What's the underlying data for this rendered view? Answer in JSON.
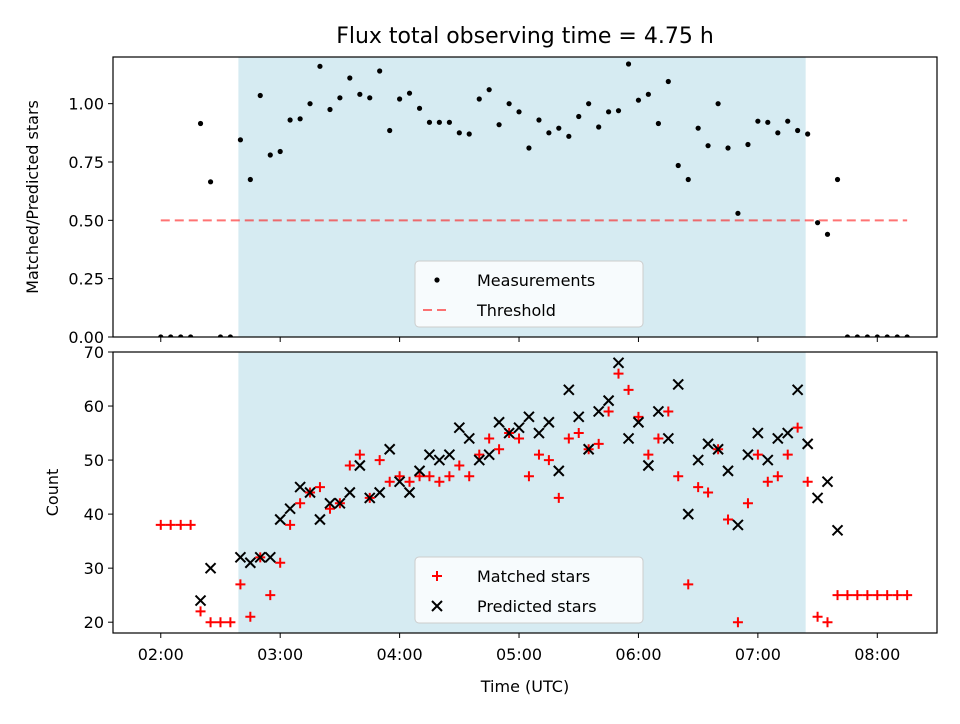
{
  "title": "Flux total observing time = 4.75 h",
  "colors": {
    "shade": "#add8e6",
    "measurement": "#000000",
    "threshold": "#ff0000",
    "matched": "#ff0000",
    "predicted": "#000000"
  },
  "chart_data": [
    {
      "type": "scatter",
      "panel": "top",
      "xlabel": "",
      "ylabel": "Matched/Predicted stars",
      "xlim": [
        1.6,
        8.5
      ],
      "ylim": [
        0,
        1.2
      ],
      "yticks": [
        0.0,
        0.25,
        0.5,
        0.75,
        1.0
      ],
      "ytick_labels": [
        "0.00",
        "0.25",
        "0.50",
        "0.75",
        "1.00"
      ],
      "shaded_region": [
        2.65,
        7.4
      ],
      "threshold": {
        "name": "Threshold",
        "y": 0.5,
        "x": [
          2.0,
          8.25
        ]
      },
      "legend": {
        "position": "lower center",
        "entries": [
          "Measurements",
          "Threshold"
        ]
      },
      "series": [
        {
          "name": "Measurements",
          "x": [
            2.0,
            2.083,
            2.167,
            2.25,
            2.333,
            2.417,
            2.5,
            2.583,
            2.667,
            2.75,
            2.833,
            2.917,
            3.0,
            3.083,
            3.167,
            3.25,
            3.333,
            3.417,
            3.5,
            3.583,
            3.667,
            3.75,
            3.833,
            3.917,
            4.0,
            4.083,
            4.167,
            4.25,
            4.333,
            4.417,
            4.5,
            4.583,
            4.667,
            4.75,
            4.833,
            4.917,
            5.0,
            5.083,
            5.167,
            5.25,
            5.333,
            5.417,
            5.5,
            5.583,
            5.667,
            5.75,
            5.833,
            5.917,
            6.0,
            6.083,
            6.167,
            6.25,
            6.333,
            6.417,
            6.5,
            6.583,
            6.667,
            6.75,
            6.833,
            6.917,
            7.0,
            7.083,
            7.167,
            7.25,
            7.333,
            7.417,
            7.5,
            7.583,
            7.667,
            7.75,
            7.833,
            7.917,
            8.0,
            8.083,
            8.167,
            8.25
          ],
          "y": [
            0,
            0,
            0,
            0,
            0.915,
            0.665,
            0,
            0,
            0.845,
            0.675,
            1.035,
            0.78,
            0.795,
            0.93,
            0.935,
            1.0,
            1.16,
            0.975,
            1.025,
            1.11,
            1.04,
            1.025,
            1.14,
            0.885,
            1.02,
            1.045,
            0.98,
            0.92,
            0.92,
            0.92,
            0.875,
            0.87,
            1.02,
            1.06,
            0.91,
            1.0,
            0.965,
            0.81,
            0.93,
            0.875,
            0.895,
            0.86,
            0.945,
            1.0,
            0.9,
            0.965,
            0.97,
            1.17,
            1.015,
            1.04,
            0.915,
            1.095,
            0.735,
            0.675,
            0.895,
            0.82,
            1.0,
            0.81,
            0.53,
            0.825,
            0.925,
            0.92,
            0.875,
            0.925,
            0.885,
            0.87,
            0.49,
            0.44,
            0.675,
            0,
            0,
            0,
            0,
            0,
            0,
            0
          ]
        }
      ]
    },
    {
      "type": "scatter",
      "panel": "bottom",
      "xlabel": "Time (UTC)",
      "ylabel": "Count",
      "xlim": [
        1.6,
        8.5
      ],
      "ylim": [
        18,
        70
      ],
      "yticks": [
        20,
        30,
        40,
        50,
        60,
        70
      ],
      "ytick_labels": [
        "20",
        "30",
        "40",
        "50",
        "60",
        "70"
      ],
      "xticks": [
        2,
        3,
        4,
        5,
        6,
        7,
        8
      ],
      "xtick_labels": [
        "02:00",
        "03:00",
        "04:00",
        "05:00",
        "06:00",
        "07:00",
        "08:00"
      ],
      "shaded_region": [
        2.65,
        7.4
      ],
      "legend": {
        "position": "lower center",
        "entries": [
          "Matched stars",
          "Predicted stars"
        ]
      },
      "series": [
        {
          "name": "Matched stars",
          "x": [
            2.0,
            2.083,
            2.167,
            2.25,
            2.333,
            2.417,
            2.5,
            2.583,
            2.667,
            2.75,
            2.833,
            2.917,
            3.0,
            3.083,
            3.167,
            3.25,
            3.333,
            3.417,
            3.5,
            3.583,
            3.667,
            3.75,
            3.833,
            3.917,
            4.0,
            4.083,
            4.167,
            4.25,
            4.333,
            4.417,
            4.5,
            4.583,
            4.667,
            4.75,
            4.833,
            4.917,
            5.0,
            5.083,
            5.167,
            5.25,
            5.333,
            5.417,
            5.5,
            5.583,
            5.667,
            5.75,
            5.833,
            5.917,
            6.0,
            6.083,
            6.167,
            6.25,
            6.333,
            6.417,
            6.5,
            6.583,
            6.667,
            6.75,
            6.833,
            6.917,
            7.0,
            7.083,
            7.167,
            7.25,
            7.333,
            7.417,
            7.5,
            7.583,
            7.667,
            7.75,
            7.833,
            7.917,
            8.0,
            8.083,
            8.167,
            8.25
          ],
          "y": [
            38,
            38,
            38,
            38,
            22,
            20,
            20,
            20,
            27,
            21,
            32,
            25,
            31,
            38,
            42,
            44,
            45,
            41,
            42,
            49,
            51,
            43,
            50,
            46,
            47,
            46,
            47,
            47,
            46,
            47,
            49,
            47,
            51,
            54,
            52,
            55,
            54,
            47,
            51,
            50,
            43,
            54,
            55,
            52,
            53,
            59,
            66,
            63,
            58,
            51,
            54,
            59,
            47,
            27,
            45,
            44,
            52,
            39,
            20,
            42,
            51,
            46,
            47,
            51,
            56,
            46,
            21,
            20,
            25,
            25,
            25,
            25,
            25,
            25,
            25,
            25
          ]
        },
        {
          "name": "Predicted stars",
          "x": [
            2.333,
            2.417,
            2.667,
            2.75,
            2.833,
            2.917,
            3.0,
            3.083,
            3.167,
            3.25,
            3.333,
            3.417,
            3.5,
            3.583,
            3.667,
            3.75,
            3.833,
            3.917,
            4.0,
            4.083,
            4.167,
            4.25,
            4.333,
            4.417,
            4.5,
            4.583,
            4.667,
            4.75,
            4.833,
            4.917,
            5.0,
            5.083,
            5.167,
            5.25,
            5.333,
            5.417,
            5.5,
            5.583,
            5.667,
            5.75,
            5.833,
            5.917,
            6.0,
            6.083,
            6.167,
            6.25,
            6.333,
            6.417,
            6.5,
            6.583,
            6.667,
            6.75,
            6.833,
            6.917,
            7.0,
            7.083,
            7.167,
            7.25,
            7.333,
            7.417,
            7.5,
            7.583,
            7.667
          ],
          "y": [
            24,
            30,
            32,
            31,
            32,
            32,
            39,
            41,
            45,
            44,
            39,
            42,
            42,
            44,
            49,
            43,
            44,
            52,
            46,
            44,
            48,
            51,
            50,
            51,
            56,
            54,
            50,
            51,
            57,
            55,
            56,
            58,
            55,
            57,
            48,
            63,
            58,
            52,
            59,
            61,
            68,
            54,
            57,
            49,
            59,
            54,
            64,
            40,
            50,
            53,
            52,
            48,
            38,
            51,
            55,
            50,
            54,
            55,
            63,
            53,
            43,
            46,
            37
          ]
        }
      ]
    }
  ]
}
